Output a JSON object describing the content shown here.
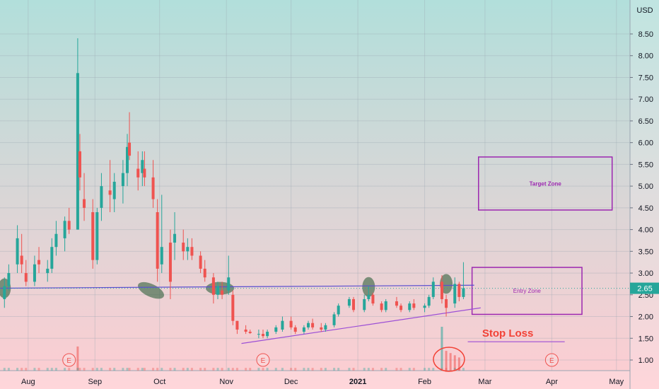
{
  "currency": "USD",
  "current_price": "2.65",
  "colors": {
    "up": "#26a69a",
    "down": "#ef5350",
    "trendline": "#9c4fd6",
    "stoploss": "#f24236",
    "price_tag": "#26a69a",
    "zone": "#9c27b0",
    "earnings": "#ef5350"
  },
  "annotations": {
    "target_zone": "Target Zone",
    "entry_zone": "Entry Zone",
    "stop_loss": "Stop Loss",
    "earnings_marker": "E"
  },
  "chart_data": {
    "type": "candlestick",
    "ylim": [
      0.75,
      8.8
    ],
    "yticks": [
      "8.50",
      "8.00",
      "7.50",
      "7.00",
      "6.50",
      "6.00",
      "5.50",
      "5.00",
      "4.50",
      "4.00",
      "3.50",
      "3.00",
      "2.50",
      "2.00",
      "1.50",
      "1.00"
    ],
    "xticks": [
      {
        "label": "Aug",
        "date": "2020-08-01",
        "bold": false
      },
      {
        "label": "Sep",
        "date": "2020-09-01",
        "bold": false
      },
      {
        "label": "Oct",
        "date": "2020-10-01",
        "bold": false
      },
      {
        "label": "Nov",
        "date": "2020-11-01",
        "bold": false
      },
      {
        "label": "Dec",
        "date": "2020-12-01",
        "bold": false
      },
      {
        "label": "2021",
        "date": "2021-01-01",
        "bold": true
      },
      {
        "label": "Feb",
        "date": "2021-02-01",
        "bold": false
      },
      {
        "label": "Mar",
        "date": "2021-03-01",
        "bold": false
      },
      {
        "label": "Apr",
        "date": "2021-04-01",
        "bold": false
      },
      {
        "label": "May",
        "date": "2021-05-01",
        "bold": false
      }
    ],
    "candles": [
      [
        "2020-07-21",
        2.4,
        2.9,
        2.2,
        2.7
      ],
      [
        "2020-07-23",
        2.7,
        3.2,
        2.6,
        3.0
      ],
      [
        "2020-07-27",
        3.2,
        4.1,
        3.0,
        3.8
      ],
      [
        "2020-07-29",
        3.4,
        3.9,
        3.0,
        3.2
      ],
      [
        "2020-07-31",
        3.0,
        3.3,
        2.7,
        2.8
      ],
      [
        "2020-08-04",
        2.8,
        3.4,
        2.7,
        3.2
      ],
      [
        "2020-08-06",
        3.3,
        3.6,
        3.0,
        3.2
      ],
      [
        "2020-08-10",
        3.0,
        3.3,
        2.8,
        3.1
      ],
      [
        "2020-08-12",
        3.1,
        3.8,
        3.0,
        3.6
      ],
      [
        "2020-08-14",
        3.6,
        4.2,
        3.4,
        3.9
      ],
      [
        "2020-08-18",
        3.8,
        4.3,
        3.5,
        4.2
      ],
      [
        "2020-08-20",
        4.2,
        4.5,
        3.9,
        4.0
      ],
      [
        "2020-08-24",
        4.0,
        8.4,
        4.0,
        7.6
      ],
      [
        "2020-08-25",
        5.8,
        6.2,
        4.9,
        5.2
      ],
      [
        "2020-08-27",
        4.7,
        5.3,
        4.2,
        4.5
      ],
      [
        "2020-08-31",
        4.4,
        4.7,
        3.1,
        3.3
      ],
      [
        "2020-09-02",
        3.3,
        4.5,
        3.2,
        4.4
      ],
      [
        "2020-09-04",
        4.5,
        5.3,
        4.2,
        5.0
      ],
      [
        "2020-09-08",
        4.9,
        5.6,
        4.4,
        4.8
      ],
      [
        "2020-09-10",
        4.7,
        5.3,
        4.4,
        5.1
      ],
      [
        "2020-09-14",
        5.0,
        5.6,
        4.6,
        5.3
      ],
      [
        "2020-09-16",
        5.3,
        6.2,
        5.0,
        5.9
      ],
      [
        "2020-09-17",
        6.0,
        6.7,
        5.6,
        5.7
      ],
      [
        "2020-09-21",
        5.4,
        5.8,
        4.9,
        5.2
      ],
      [
        "2020-09-23",
        5.3,
        5.8,
        5.0,
        5.6
      ],
      [
        "2020-09-24",
        5.4,
        5.8,
        5.0,
        5.2
      ],
      [
        "2020-09-28",
        5.2,
        5.6,
        4.5,
        4.7
      ],
      [
        "2020-09-30",
        4.4,
        4.7,
        2.8,
        3.1
      ],
      [
        "2020-10-02",
        3.2,
        4.8,
        3.0,
        3.6
      ],
      [
        "2020-10-06",
        3.7,
        4.0,
        2.4,
        2.8
      ],
      [
        "2020-10-08",
        3.7,
        4.4,
        3.3,
        3.9
      ],
      [
        "2020-10-12",
        3.7,
        4.0,
        3.3,
        3.5
      ],
      [
        "2020-10-14",
        3.5,
        3.8,
        3.3,
        3.6
      ],
      [
        "2020-10-16",
        3.6,
        3.8,
        3.3,
        3.4
      ],
      [
        "2020-10-20",
        3.4,
        3.5,
        3.0,
        3.1
      ],
      [
        "2020-10-22",
        3.1,
        3.3,
        2.8,
        2.9
      ],
      [
        "2020-10-26",
        2.9,
        3.0,
        2.3,
        2.5
      ],
      [
        "2020-10-28",
        2.5,
        2.8,
        2.4,
        2.7
      ],
      [
        "2020-10-30",
        2.6,
        2.8,
        2.4,
        2.5
      ],
      [
        "2020-11-02",
        2.6,
        3.4,
        2.5,
        2.9
      ],
      [
        "2020-11-04",
        2.5,
        2.6,
        1.8,
        1.9
      ],
      [
        "2020-11-06",
        1.9,
        1.9,
        1.6,
        1.7
      ],
      [
        "2020-11-10",
        1.7,
        1.8,
        1.6,
        1.65
      ],
      [
        "2020-11-12",
        1.65,
        1.7,
        1.6,
        1.62
      ],
      [
        "2020-11-16",
        1.6,
        1.7,
        1.5,
        1.6
      ],
      [
        "2020-11-18",
        1.6,
        1.7,
        1.5,
        1.55
      ],
      [
        "2020-11-20",
        1.55,
        1.7,
        1.5,
        1.65
      ],
      [
        "2020-11-24",
        1.65,
        1.8,
        1.6,
        1.75
      ],
      [
        "2020-11-27",
        1.7,
        2.0,
        1.65,
        1.9
      ],
      [
        "2020-12-01",
        1.9,
        2.0,
        1.7,
        1.75
      ],
      [
        "2020-12-03",
        1.75,
        1.8,
        1.6,
        1.65
      ],
      [
        "2020-12-07",
        1.65,
        1.8,
        1.6,
        1.75
      ],
      [
        "2020-12-09",
        1.75,
        1.9,
        1.7,
        1.85
      ],
      [
        "2020-12-11",
        1.85,
        1.95,
        1.7,
        1.75
      ],
      [
        "2020-12-15",
        1.75,
        1.85,
        1.65,
        1.7
      ],
      [
        "2020-12-17",
        1.7,
        1.85,
        1.65,
        1.8
      ],
      [
        "2020-12-21",
        1.8,
        2.1,
        1.75,
        2.05
      ],
      [
        "2020-12-23",
        2.05,
        2.3,
        2.0,
        2.25
      ],
      [
        "2020-12-28",
        2.25,
        2.45,
        2.2,
        2.4
      ],
      [
        "2020-12-30",
        2.4,
        2.45,
        2.1,
        2.15
      ],
      [
        "2021-01-04",
        2.15,
        2.5,
        2.1,
        2.4
      ],
      [
        "2021-01-06",
        2.4,
        2.7,
        2.35,
        2.5
      ],
      [
        "2021-01-08",
        2.5,
        2.55,
        2.25,
        2.3
      ],
      [
        "2021-01-12",
        2.3,
        2.35,
        2.1,
        2.15
      ],
      [
        "2021-01-14",
        2.15,
        2.4,
        2.1,
        2.35
      ],
      [
        "2021-01-19",
        2.35,
        2.45,
        2.2,
        2.25
      ],
      [
        "2021-01-21",
        2.25,
        2.3,
        2.1,
        2.15
      ],
      [
        "2021-01-25",
        2.15,
        2.35,
        2.1,
        2.3
      ],
      [
        "2021-01-27",
        2.3,
        2.4,
        2.15,
        2.2
      ],
      [
        "2021-02-01",
        2.2,
        2.3,
        2.1,
        2.25
      ],
      [
        "2021-02-03",
        2.25,
        2.5,
        2.2,
        2.45
      ],
      [
        "2021-02-05",
        2.45,
        2.9,
        2.4,
        2.8
      ],
      [
        "2021-02-09",
        2.8,
        2.95,
        2.3,
        2.4
      ],
      [
        "2021-02-11",
        2.4,
        2.5,
        2.0,
        2.2
      ],
      [
        "2021-02-15",
        2.3,
        2.9,
        2.2,
        2.75
      ],
      [
        "2021-02-17",
        2.75,
        2.8,
        2.35,
        2.45
      ],
      [
        "2021-02-19",
        2.45,
        3.25,
        2.4,
        2.65
      ]
    ],
    "volumes": [
      [
        "2020-08-24",
        0.55
      ],
      [
        "2021-02-09",
        1.0
      ],
      [
        "2021-02-11",
        0.45
      ],
      [
        "2021-02-13",
        0.4
      ],
      [
        "2021-02-15",
        0.35
      ],
      [
        "2021-02-17",
        0.3
      ]
    ],
    "earnings_dates": [
      "2020-08-20",
      "2020-11-18",
      "2021-04-01"
    ],
    "support_line": {
      "start": [
        "2020-07-15",
        2.65
      ],
      "end": [
        "2021-02-24",
        2.72
      ]
    },
    "rising_trendline": {
      "start": [
        "2020-11-08",
        1.38
      ],
      "end": [
        "2021-02-27",
        2.2
      ]
    },
    "stop_loss_line": {
      "start": [
        "2021-02-21",
        1.42
      ],
      "end": [
        "2021-04-07",
        1.42
      ]
    },
    "target_zone_range": {
      "date_start": "2021-02-26",
      "date_end": "2021-04-29",
      "low": 4.45,
      "high": 5.67
    },
    "entry_zone_range": {
      "date_start": "2021-02-23",
      "date_end": "2021-04-15",
      "low": 2.05,
      "high": 3.13
    },
    "highlight_markers": [
      [
        "2020-07-21",
        2.65
      ],
      [
        "2020-09-27",
        2.6
      ],
      [
        "2020-10-29",
        2.65
      ],
      [
        "2021-01-06",
        2.68
      ],
      [
        "2021-02-11",
        2.75
      ]
    ]
  }
}
